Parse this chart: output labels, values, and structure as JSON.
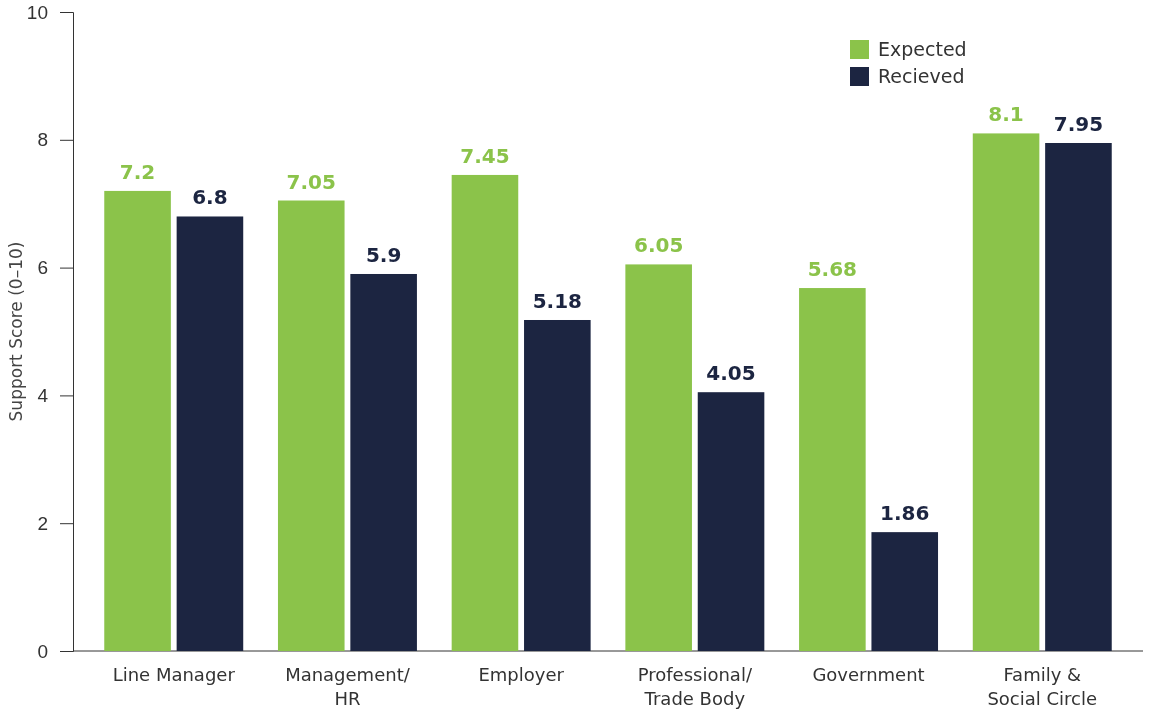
{
  "chart_data": {
    "type": "bar",
    "ylabel": "Support Score (0–10)",
    "categories": [
      "Line Manager",
      "Management/\nHR",
      "Employer",
      "Professional/\nTrade Body",
      "Government",
      "Family &\nSocial Circle"
    ],
    "series": [
      {
        "name": "Expected",
        "color": "#8bc34a",
        "values": [
          7.2,
          7.05,
          7.45,
          6.05,
          5.68,
          8.1
        ]
      },
      {
        "name": "Recieved",
        "color": "#1c2541",
        "values": [
          6.8,
          5.9,
          5.18,
          4.05,
          1.86,
          7.95
        ]
      }
    ],
    "ylim": [
      0,
      10
    ],
    "yticks": [
      0,
      2,
      4,
      6,
      8,
      10
    ],
    "data_labels": true,
    "legend": "top right",
    "grid": false
  }
}
